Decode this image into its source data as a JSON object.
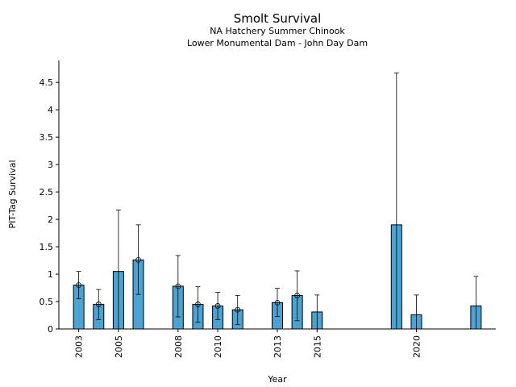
{
  "chart_data": {
    "type": "bar",
    "title": "Smolt Survival",
    "subtitle_lines": [
      "NA Hatchery Summer Chinook",
      "Lower Monumental Dam - John Day Dam"
    ],
    "xlabel": "Year",
    "ylabel": "PIT-Tag Survival",
    "xlim": [
      2002,
      2024
    ],
    "ylim": [
      0,
      4.9
    ],
    "yticks": [
      0,
      0.5,
      1,
      1.5,
      2,
      2.5,
      3,
      3.5,
      4,
      4.5
    ],
    "ytick_labels": [
      "0",
      "0.5",
      "1",
      "1.5",
      "2",
      "2.5",
      "3",
      "3.5",
      "4",
      "4.5"
    ],
    "xticks": [
      2003,
      2005,
      2008,
      2010,
      2013,
      2015,
      2020
    ],
    "xtick_labels": [
      "2003",
      "2005",
      "2008",
      "2010",
      "2013",
      "2015",
      "2020"
    ],
    "bar_color": "#4ba3d3",
    "series": [
      {
        "values": [
          {
            "year": 2003,
            "value": 0.8,
            "err_low": 0.55,
            "err_high": 1.05,
            "marker": true
          },
          {
            "year": 2004,
            "value": 0.45,
            "err_low": 0.17,
            "err_high": 0.72,
            "marker": true
          },
          {
            "year": 2005,
            "value": 1.05,
            "err_low": 0.0,
            "err_high": 2.17,
            "marker": false
          },
          {
            "year": 2006,
            "value": 1.26,
            "err_low": 0.63,
            "err_high": 1.9,
            "marker": true
          },
          {
            "year": 2008,
            "value": 0.78,
            "err_low": 0.22,
            "err_high": 1.34,
            "marker": true
          },
          {
            "year": 2009,
            "value": 0.45,
            "err_low": 0.12,
            "err_high": 0.77,
            "marker": true
          },
          {
            "year": 2010,
            "value": 0.42,
            "err_low": 0.17,
            "err_high": 0.67,
            "marker": true
          },
          {
            "year": 2011,
            "value": 0.35,
            "err_low": 0.08,
            "err_high": 0.61,
            "marker": true
          },
          {
            "year": 2013,
            "value": 0.48,
            "err_low": 0.23,
            "err_high": 0.74,
            "marker": true
          },
          {
            "year": 2014,
            "value": 0.61,
            "err_low": 0.15,
            "err_high": 1.06,
            "marker": true
          },
          {
            "year": 2015,
            "value": 0.31,
            "err_low": 0.0,
            "err_high": 0.62,
            "marker": false
          },
          {
            "year": 2019,
            "value": 1.9,
            "err_low": 0.0,
            "err_high": 4.67,
            "marker": false
          },
          {
            "year": 2020,
            "value": 0.26,
            "err_low": 0.0,
            "err_high": 0.62,
            "marker": false
          },
          {
            "year": 2023,
            "value": 0.42,
            "err_low": 0.0,
            "err_high": 0.96,
            "marker": false
          }
        ]
      }
    ]
  }
}
